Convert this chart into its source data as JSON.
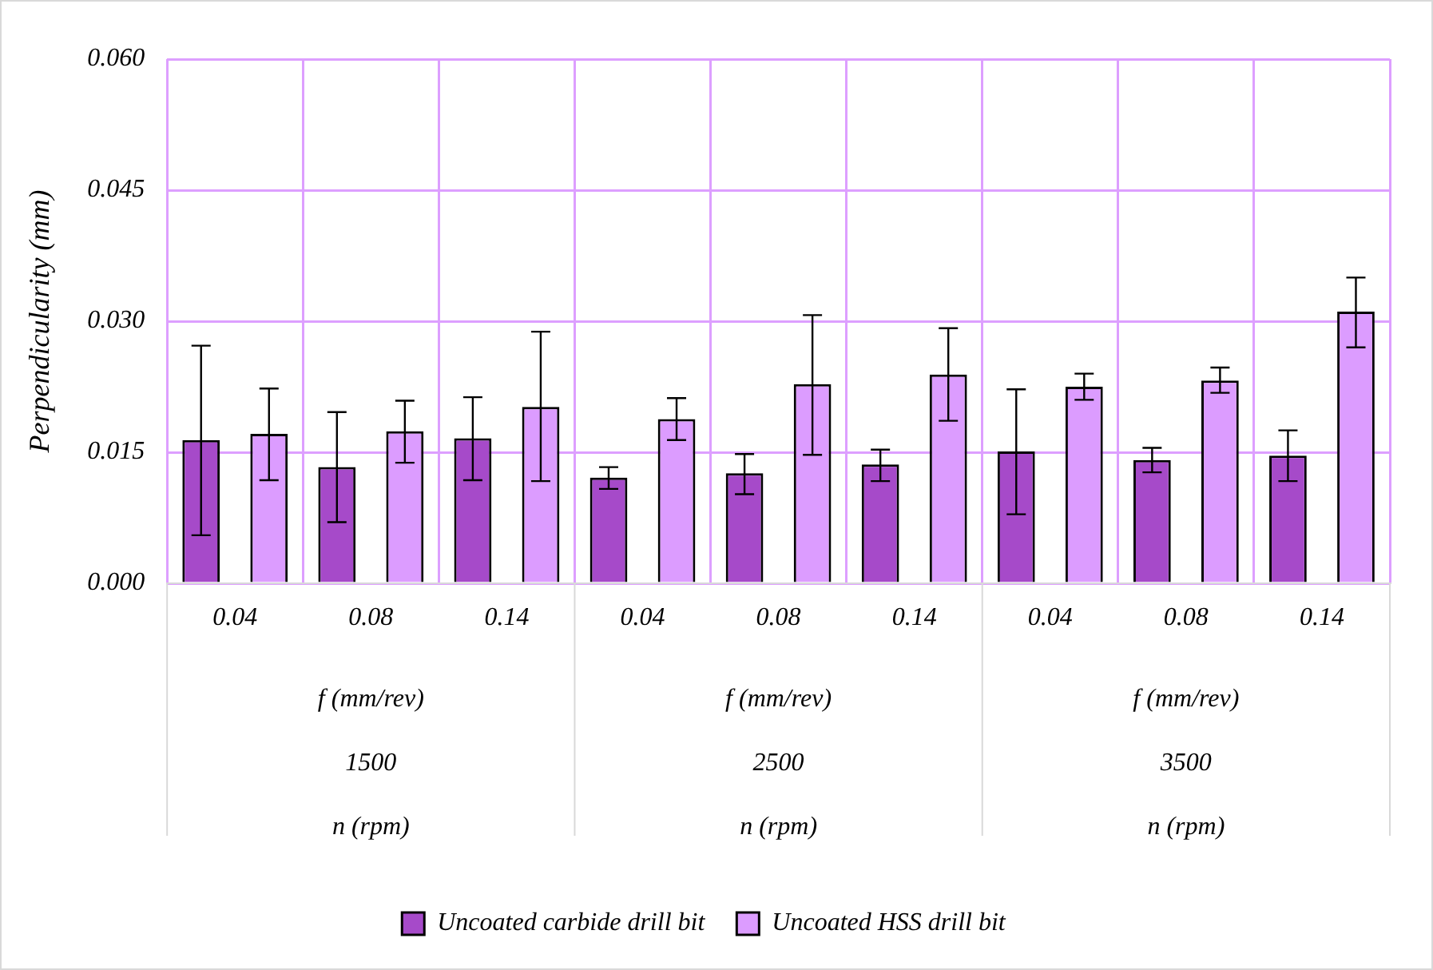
{
  "chart_data": {
    "type": "bar",
    "ylabel": "Perpendicularity (mm)",
    "categories": [
      "0.04",
      "0.08",
      "0.14",
      "0.04",
      "0.08",
      "0.14",
      "0.04",
      "0.08",
      "0.14"
    ],
    "series": [
      {
        "name": "Uncoated carbide drill bit",
        "color": "#a64ac9",
        "values": [
          0.0164,
          0.0133,
          0.0166,
          0.0121,
          0.0126,
          0.0136,
          0.0151,
          0.0141,
          0.0146
        ],
        "errors": [
          [
            0.0055,
            0.0272
          ],
          [
            0.007,
            0.0196
          ],
          [
            0.0118,
            0.0213
          ],
          [
            0.0108,
            0.0133
          ],
          [
            0.0102,
            0.0148
          ],
          [
            0.0117,
            0.0153
          ],
          [
            0.0079,
            0.0222
          ],
          [
            0.0127,
            0.0155
          ],
          [
            0.0117,
            0.0175
          ]
        ]
      },
      {
        "name": "Uncoated HSS drill bit",
        "color": "#dc9cff",
        "values": [
          0.0171,
          0.0174,
          0.0202,
          0.0188,
          0.0228,
          0.0239,
          0.0225,
          0.0232,
          0.0311
        ],
        "errors": [
          [
            0.0118,
            0.0223
          ],
          [
            0.0138,
            0.0209
          ],
          [
            0.0117,
            0.0288
          ],
          [
            0.0164,
            0.0212
          ],
          [
            0.0147,
            0.0307
          ],
          [
            0.0186,
            0.0292
          ],
          [
            0.021,
            0.024
          ],
          [
            0.0218,
            0.0247
          ],
          [
            0.027,
            0.035
          ]
        ]
      }
    ],
    "ylim": [
      0,
      0.06
    ],
    "yticks": [
      {
        "value": 0,
        "label": "0.000"
      },
      {
        "value": 0.015,
        "label": "0.015"
      },
      {
        "value": 0.03,
        "label": "0.030"
      },
      {
        "value": 0.045,
        "label": "0.045"
      },
      {
        "value": 0.06,
        "label": "0.060"
      }
    ],
    "grid": true,
    "legend": "bottom",
    "annotations": [
      "f (mm/rev)",
      "f (mm/rev)",
      "f (mm/rev)",
      "1500",
      "2500",
      "3500",
      "n (rpm)",
      "n (rpm)",
      "n (rpm)"
    ]
  }
}
